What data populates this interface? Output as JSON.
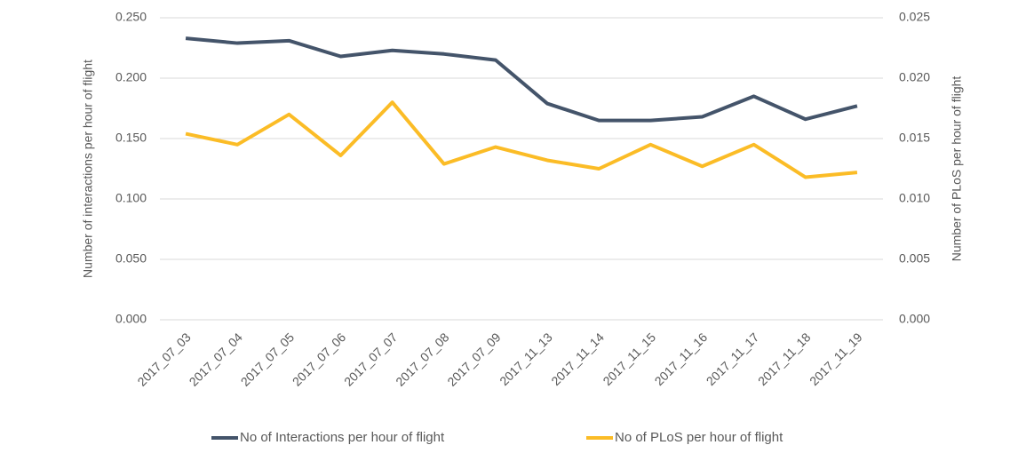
{
  "chart_data": {
    "type": "line",
    "categories": [
      "2017_07_03",
      "2017_07_04",
      "2017_07_05",
      "2017_07_06",
      "2017_07_07",
      "2017_07_08",
      "2017_07_09",
      "2017_11_13",
      "2017_11_14",
      "2017_11_15",
      "2017_11_16",
      "2017_11_17",
      "2017_11_18",
      "2017_11_19"
    ],
    "y_label": "Number of interactions per hour of flight",
    "y2_label": "Number of PLoS per hour of flight",
    "ylim": [
      0,
      0.25
    ],
    "yticks": [
      {
        "value": 0,
        "label": "0.000"
      },
      {
        "value": 0.05,
        "label": "0.050"
      },
      {
        "value": 0.1,
        "label": "0.100"
      },
      {
        "value": 0.15,
        "label": "0.150"
      },
      {
        "value": 0.2,
        "label": "0.200"
      },
      {
        "value": 0.25,
        "label": "0.250"
      }
    ],
    "y2lim": [
      0,
      0.025
    ],
    "y2ticks": [
      {
        "value": 0,
        "label": "0.000"
      },
      {
        "value": 0.005,
        "label": "0.005"
      },
      {
        "value": 0.01,
        "label": "0.010"
      },
      {
        "value": 0.015,
        "label": "0.015"
      },
      {
        "value": 0.02,
        "label": "0.020"
      },
      {
        "value": 0.025,
        "label": "0.025"
      }
    ],
    "grid": true,
    "legend": "bottom",
    "series": [
      {
        "name": "No of Interactions per hour of flight",
        "color": "#44546a",
        "values": [
          0.233,
          0.229,
          0.231,
          0.218,
          0.223,
          0.22,
          0.215,
          0.179,
          0.165,
          0.165,
          0.168,
          0.185,
          0.166,
          0.177
        ]
      },
      {
        "name": "No of PLoS per hour of flight",
        "color": "#fbbc26",
        "axis": "y2",
        "values": [
          0.0154,
          0.0145,
          0.017,
          0.0136,
          0.018,
          0.0129,
          0.0143,
          0.0132,
          0.0125,
          0.0145,
          0.0127,
          0.0145,
          0.0118,
          0.0122
        ]
      }
    ]
  }
}
